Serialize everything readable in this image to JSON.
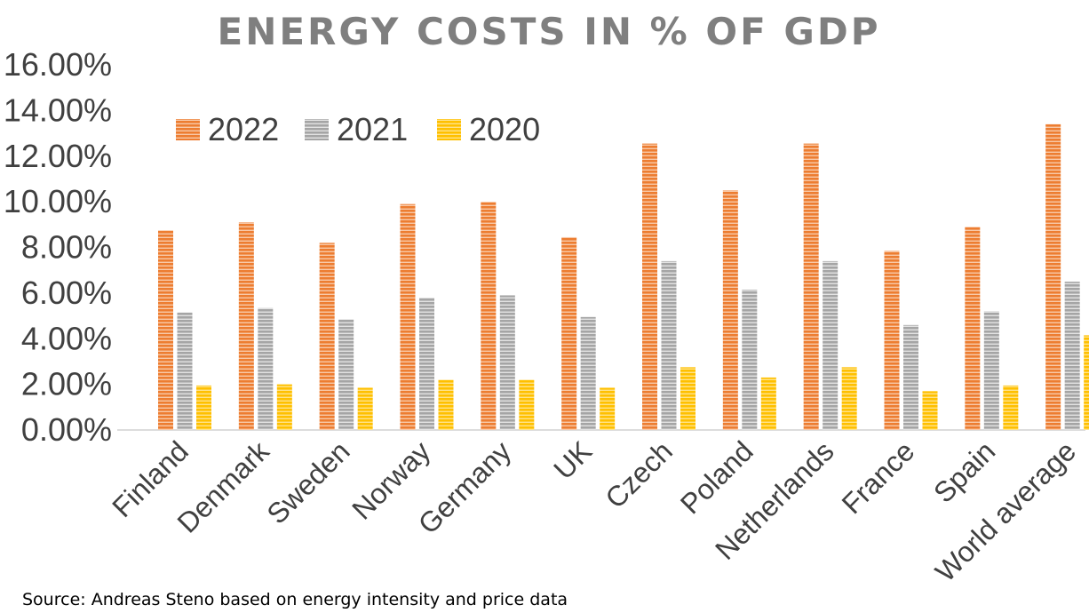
{
  "chart_data": {
    "type": "bar",
    "title": "ENERGY COSTS IN % OF GDP",
    "categories": [
      "Finland",
      "Denmark",
      "Sweden",
      "Norway",
      "Germany",
      "UK",
      "Czech",
      "Poland",
      "Netherlands",
      "France",
      "Spain",
      "World average"
    ],
    "series": [
      {
        "name": "2022",
        "color": "#ED7D31",
        "values": [
          8.75,
          9.1,
          8.2,
          9.9,
          10.0,
          8.45,
          12.55,
          10.5,
          12.55,
          7.85,
          8.9,
          13.4
        ]
      },
      {
        "name": "2021",
        "color": "#A5A5A5",
        "values": [
          5.15,
          5.35,
          4.85,
          5.8,
          5.9,
          4.95,
          7.4,
          6.15,
          7.4,
          4.6,
          5.2,
          6.5
        ]
      },
      {
        "name": "2020",
        "color": "#FFC000",
        "values": [
          1.95,
          2.0,
          1.85,
          2.2,
          2.2,
          1.85,
          2.75,
          2.3,
          2.75,
          1.7,
          1.95,
          4.15
        ]
      }
    ],
    "ylim": [
      0,
      16
    ],
    "yticks": [
      "0.00%",
      "2.00%",
      "4.00%",
      "6.00%",
      "8.00%",
      "10.00%",
      "12.00%",
      "14.00%",
      "16.00%"
    ],
    "xlabel": "",
    "ylabel": "",
    "grid": false,
    "legend": "top-left"
  },
  "source_note": "Source: Andreas Steno based on energy intensity and price data"
}
